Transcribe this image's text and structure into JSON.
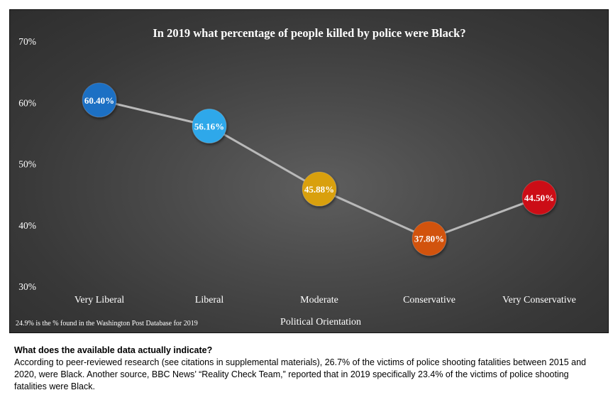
{
  "chart_data": {
    "type": "line",
    "title": "In 2019 what percentage of people killed by police were Black?",
    "xlabel": "Political Orientation",
    "ylabel": "",
    "categories": [
      "Very Liberal",
      "Liberal",
      "Moderate",
      "Conservative",
      "Very Conservative"
    ],
    "values": [
      60.4,
      56.16,
      45.88,
      37.8,
      44.5
    ],
    "data_labels": [
      "60.40%",
      "56.16%",
      "45.88%",
      "37.80%",
      "44.50%"
    ],
    "point_colors": [
      "#1f6fc4",
      "#2ea8ea",
      "#d9a010",
      "#d2530e",
      "#cc1012"
    ],
    "ylim": [
      30,
      70
    ],
    "y_ticks": [
      30,
      40,
      50,
      60,
      70
    ],
    "y_tick_labels": [
      "30%",
      "40%",
      "50%",
      "60%",
      "70%"
    ],
    "line_color": "#b9b9b9",
    "grid": false,
    "legend": "none",
    "footnote": "24.9% is the % found in the Washington Post Database for 2019"
  },
  "text_block": {
    "heading": "What does the available data actually indicate?",
    "body": "According to peer-reviewed research (see citations in supplemental materials), 26.7% of the victims of police shooting fatalities between 2015 and 2020, were Black. Another source, BBC News’ “Reality Check Team,” reported that in 2019 specifically 23.4% of the victims of police shooting fatalities were Black."
  }
}
